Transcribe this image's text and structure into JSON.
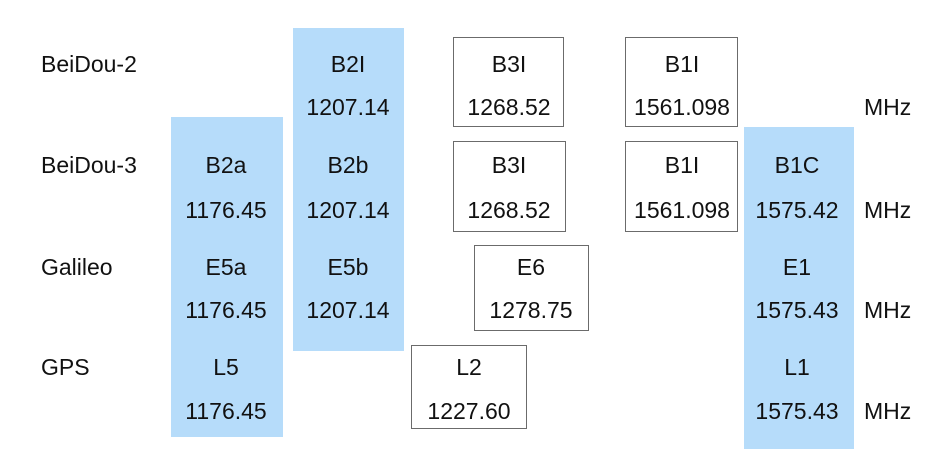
{
  "colors": {
    "highlight": "#b6dcfa",
    "box_border": "#6b6b6b",
    "text": "#111111"
  },
  "unit": "MHz",
  "systems": [
    {
      "name": "BeiDou-2",
      "signals": [
        {
          "label": "B2I",
          "freq": "1207.14",
          "style": "highlight"
        },
        {
          "label": "B3I",
          "freq": "1268.52",
          "style": "boxed"
        },
        {
          "label": "B1I",
          "freq": "1561.098",
          "style": "boxed"
        }
      ]
    },
    {
      "name": "BeiDou-3",
      "signals": [
        {
          "label": "B2a",
          "freq": "1176.45",
          "style": "highlight"
        },
        {
          "label": "B2b",
          "freq": "1207.14",
          "style": "highlight"
        },
        {
          "label": "B3I",
          "freq": "1268.52",
          "style": "boxed"
        },
        {
          "label": "B1I",
          "freq": "1561.098",
          "style": "boxed"
        },
        {
          "label": "B1C",
          "freq": "1575.42",
          "style": "highlight"
        }
      ]
    },
    {
      "name": "Galileo",
      "signals": [
        {
          "label": "E5a",
          "freq": "1176.45",
          "style": "highlight"
        },
        {
          "label": "E5b",
          "freq": "1207.14",
          "style": "highlight"
        },
        {
          "label": "E6",
          "freq": "1278.75",
          "style": "boxed"
        },
        {
          "label": "E1",
          "freq": "1575.43",
          "style": "highlight"
        }
      ]
    },
    {
      "name": "GPS",
      "signals": [
        {
          "label": "L5",
          "freq": "1176.45",
          "style": "highlight"
        },
        {
          "label": "L2",
          "freq": "1227.60",
          "style": "boxed"
        },
        {
          "label": "L1",
          "freq": "1575.43",
          "style": "highlight"
        }
      ]
    }
  ]
}
